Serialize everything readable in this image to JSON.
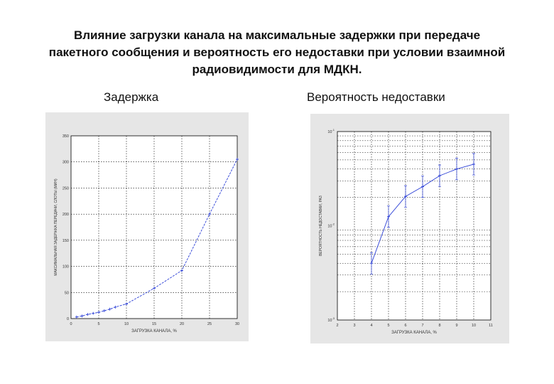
{
  "title_lines": [
    "Влияние загрузки канала на максимальные задержки при передаче",
    "пакетного сообщения и вероятность его недоставки при условии взаимной",
    "радиовидимости для МДКН."
  ],
  "subtitles": {
    "left": "Задержка",
    "right": "Вероятность недоставки"
  },
  "colors": {
    "series": "#2b3fd6",
    "panel_bg": "#e6e6e6",
    "plot_bg": "#ffffff",
    "grid": "#000000"
  },
  "chart_data": [
    {
      "type": "line",
      "xlabel": "ЗАГРУЗКА КАНАЛА, %",
      "ylabel": "МАКСИМАЛЬНАЯ ЗАДЕРЖКА ПЕРЕДАЧИ, СЛОТЫ (МИН)",
      "xlim": [
        0,
        30
      ],
      "ylim": [
        0,
        350
      ],
      "xticks": [
        0,
        5,
        10,
        15,
        20,
        25,
        30
      ],
      "yticks": [
        0,
        50,
        100,
        150,
        200,
        250,
        300,
        350
      ],
      "grid": true,
      "x": [
        1,
        2,
        3,
        4,
        5,
        6,
        7,
        8,
        10,
        15,
        20,
        25,
        30
      ],
      "y": [
        3,
        5,
        8,
        10,
        12,
        15,
        18,
        22,
        28,
        58,
        92,
        200,
        305
      ]
    },
    {
      "type": "line",
      "xlabel": "ЗАГРУЗКА КАНАЛА, %",
      "ylabel": "ВЕРОЯТНОСТЬ НЕДОСТАВКИ, РАЗ",
      "xlim": [
        2,
        11
      ],
      "ylim": [
        0.001,
        0.1
      ],
      "yscale": "log",
      "xticks": [
        2,
        3,
        4,
        5,
        6,
        7,
        8,
        9,
        10,
        11
      ],
      "yticks": [
        "10^-3",
        "10^-2",
        "10^-1"
      ],
      "grid": true,
      "x": [
        4,
        5,
        6,
        7,
        8,
        9,
        10
      ],
      "y": [
        0.004,
        0.0125,
        0.0205,
        0.026,
        0.034,
        0.04,
        0.045
      ]
    }
  ]
}
